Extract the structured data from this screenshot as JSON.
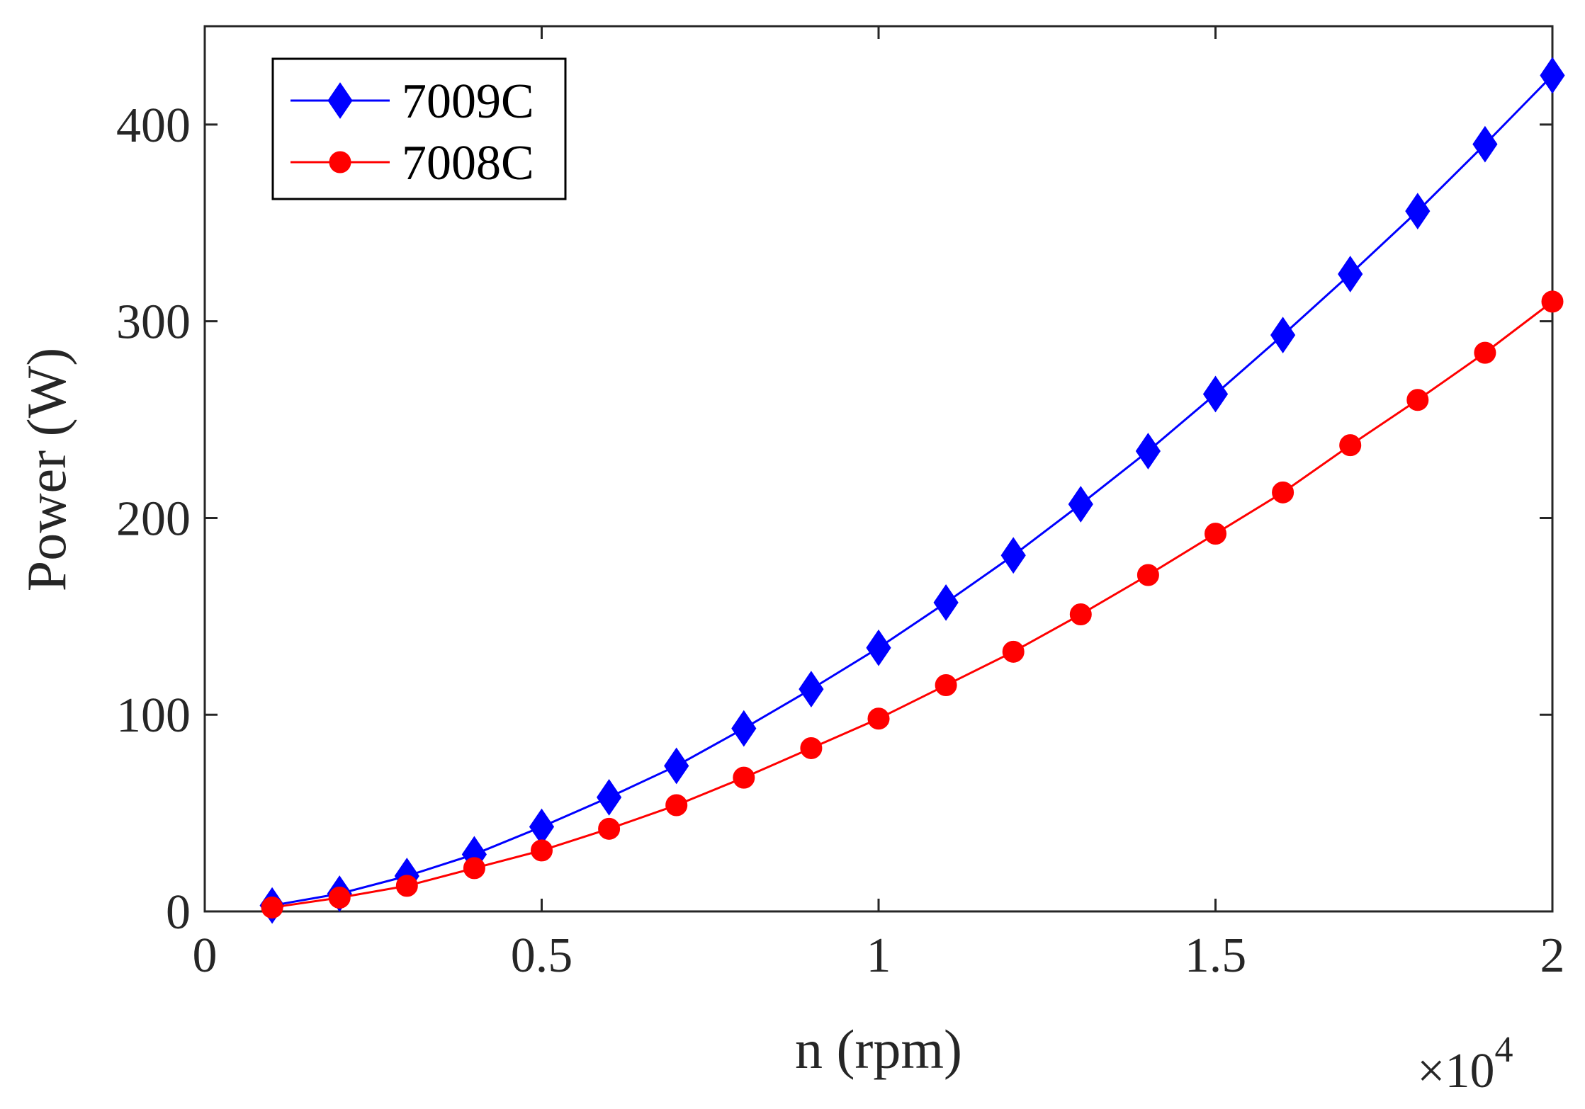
{
  "chart_data": {
    "type": "line",
    "title": "",
    "xlabel": "n (rpm)",
    "ylabel": "Power (W)",
    "x_multiplier_label": "×10",
    "x_multiplier_exponent": "4",
    "x_scale": 10000,
    "xlim": [
      0,
      20000
    ],
    "ylim": [
      0,
      450
    ],
    "x_ticks": [
      0,
      5000,
      10000,
      15000,
      20000
    ],
    "x_tick_labels": [
      "0",
      "0.5",
      "1",
      "1.5",
      "2"
    ],
    "y_ticks": [
      0,
      100,
      200,
      300,
      400
    ],
    "y_tick_labels": [
      "0",
      "100",
      "200",
      "300",
      "400"
    ],
    "grid": false,
    "legend_position": "top-left",
    "x": [
      1000,
      2000,
      3000,
      4000,
      5000,
      6000,
      7000,
      8000,
      9000,
      10000,
      11000,
      12000,
      13000,
      14000,
      15000,
      16000,
      17000,
      18000,
      19000,
      20000
    ],
    "series": [
      {
        "name": "7009C",
        "color": "#0000ff",
        "marker": "diamond",
        "values": [
          3,
          9,
          18,
          29,
          43,
          58,
          74,
          93,
          113,
          134,
          157,
          181,
          207,
          234,
          263,
          293,
          324,
          356,
          390,
          425
        ]
      },
      {
        "name": "7008C",
        "color": "#ff0000",
        "marker": "circle",
        "values": [
          2,
          7,
          13,
          22,
          31,
          42,
          54,
          68,
          83,
          98,
          115,
          132,
          151,
          171,
          192,
          213,
          237,
          260,
          284,
          310
        ]
      }
    ]
  }
}
